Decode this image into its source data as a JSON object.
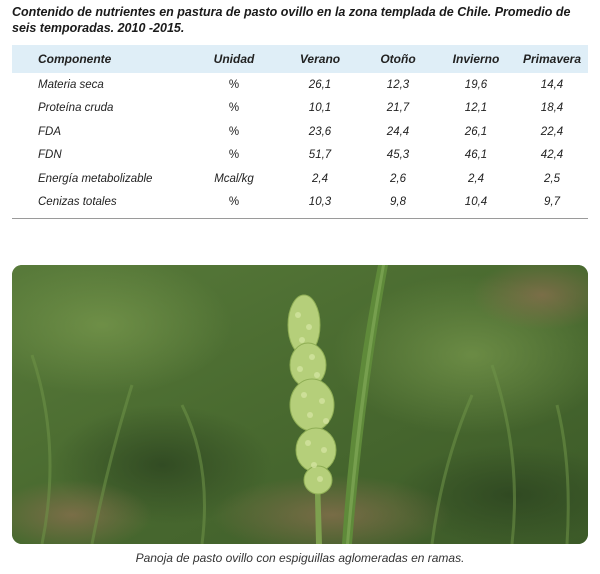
{
  "title": "Contenido de nutrientes en pastura de pasto ovillo en la zona templada de Chile. Promedio de seis temporadas. 2010 -2015.",
  "table": {
    "headers": [
      "Componente",
      "Unidad",
      "Verano",
      "Otoño",
      "Invierno",
      "Primavera"
    ],
    "rows": [
      [
        "Materia seca",
        "%",
        "26,1",
        "12,3",
        "19,6",
        "14,4"
      ],
      [
        "Proteína cruda",
        "%",
        "10,1",
        "21,7",
        "12,1",
        "18,4"
      ],
      [
        "FDA",
        "%",
        "23,6",
        "24,4",
        "26,1",
        "22,4"
      ],
      [
        "FDN",
        "%",
        "51,7",
        "45,3",
        "46,1",
        "42,4"
      ],
      [
        "Energía metabolizable",
        "Mcal/kg",
        "2,4",
        "2,6",
        "2,4",
        "2,5"
      ],
      [
        "Cenizas totales",
        "%",
        "10,3",
        "9,8",
        "10,4",
        "9,7"
      ]
    ]
  },
  "photo": {
    "subject": "panicle-of-orchardgrass",
    "colors": {
      "background": "#4b6a33",
      "panicle": "#b5cf7a",
      "leaf": "#5f8a3a",
      "soil": "#8a6f4f"
    }
  },
  "caption": "Panoja de pasto ovillo con espiguillas aglomeradas en ramas."
}
